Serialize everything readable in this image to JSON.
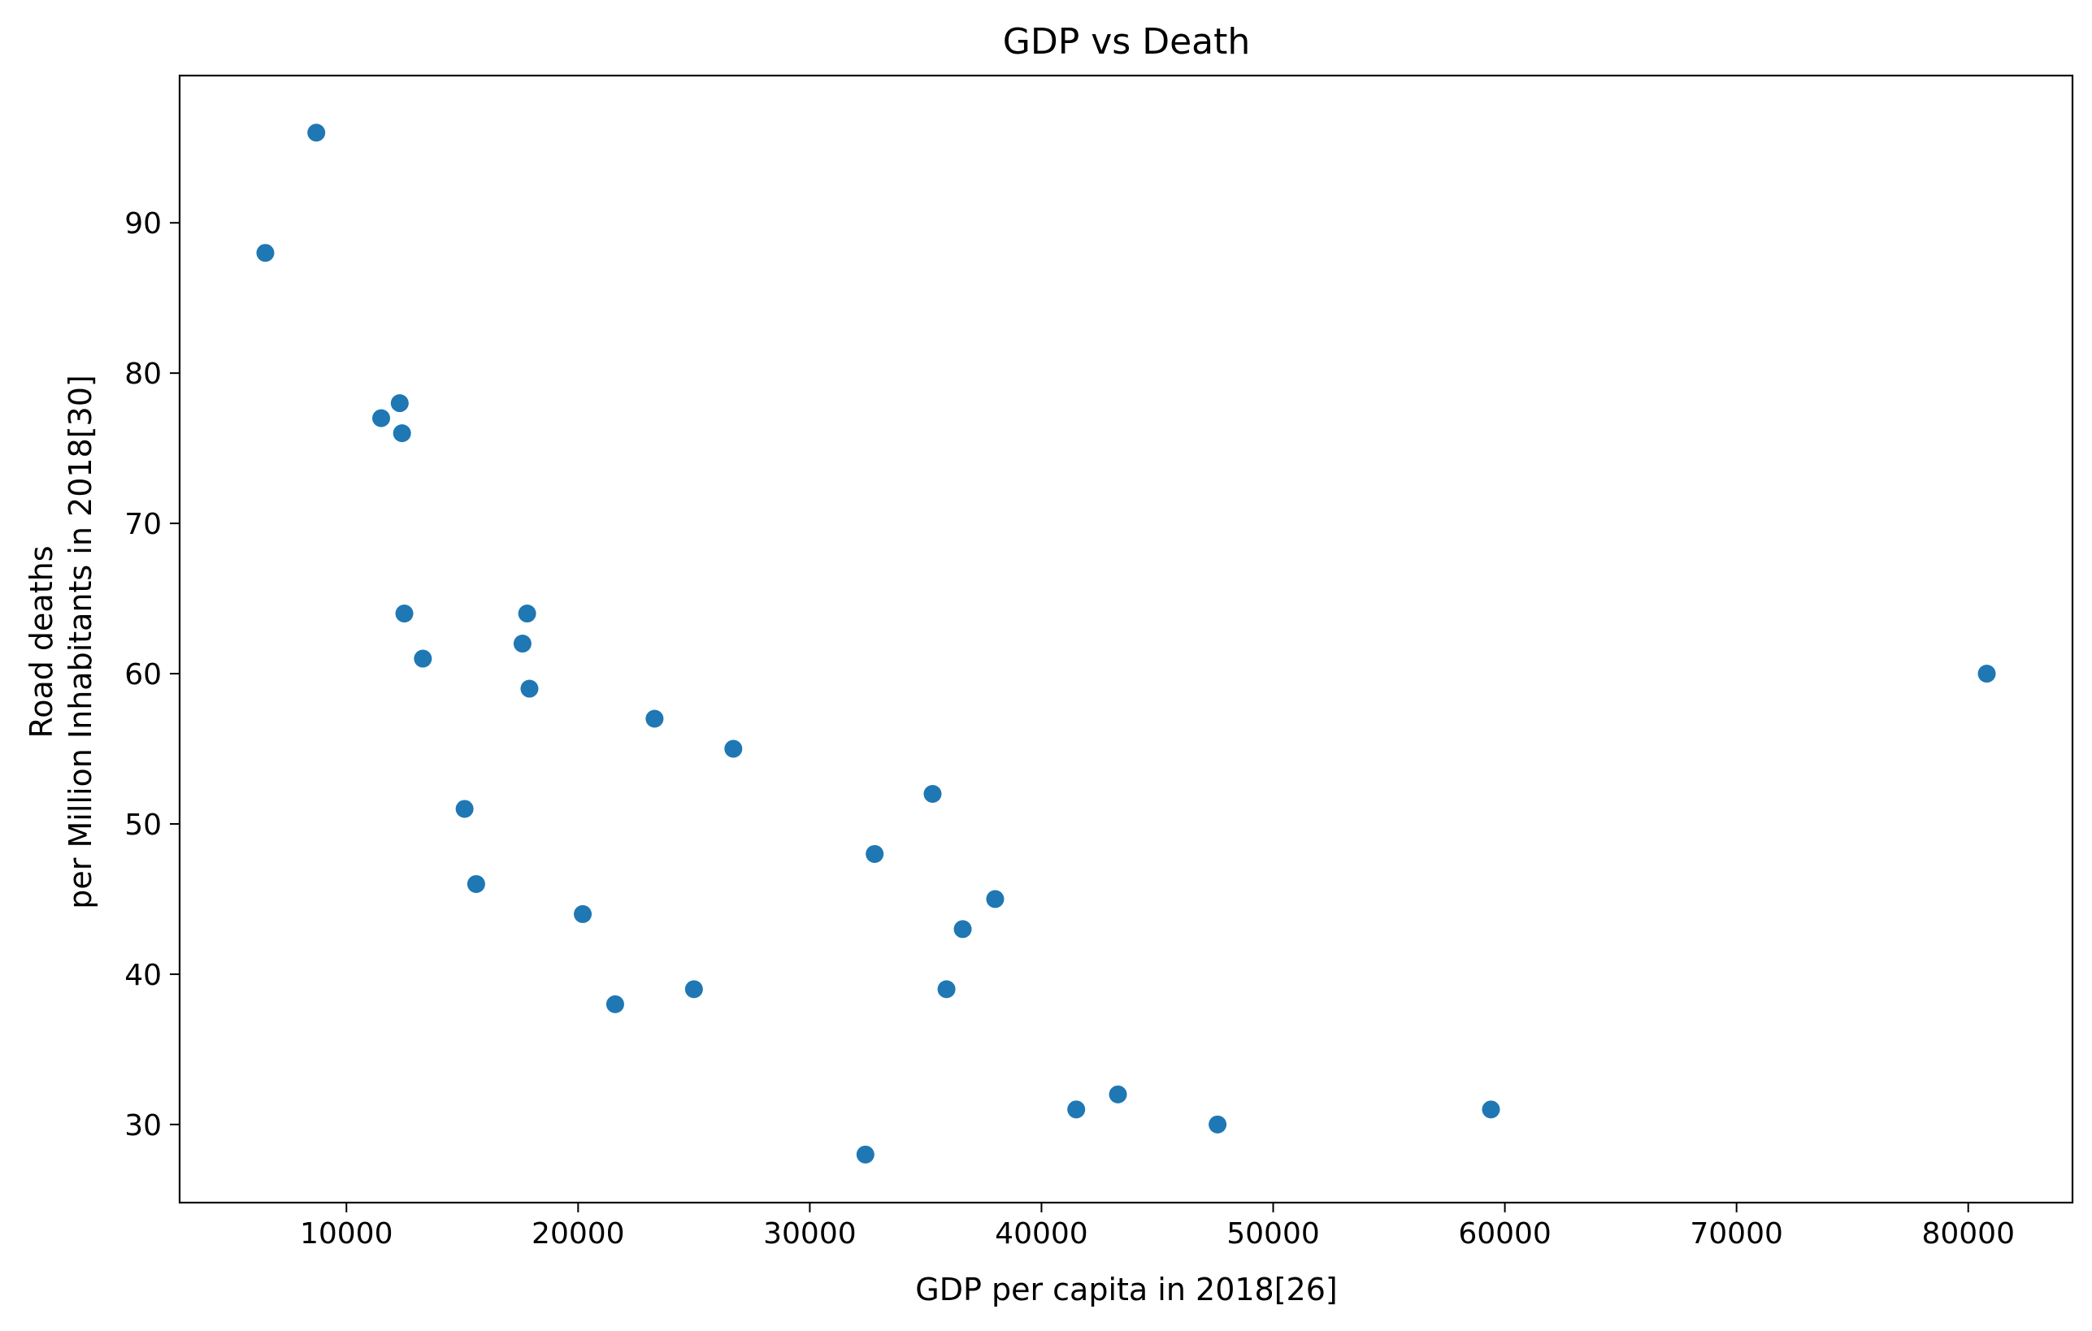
{
  "chart_data": {
    "type": "scatter",
    "title": "GDP vs Death",
    "xlabel": "GDP per capita in 2018[26]",
    "ylabel_lines": [
      "Road deaths",
      "per Million Inhabitants in 2018[30]"
    ],
    "xlim": [
      2800,
      84500
    ],
    "ylim": [
      24.8,
      99.8
    ],
    "xticks": [
      10000,
      20000,
      30000,
      40000,
      50000,
      60000,
      70000,
      80000
    ],
    "yticks": [
      30,
      40,
      50,
      60,
      70,
      80,
      90
    ],
    "grid": false,
    "marker_color": "#1f77b4",
    "points": [
      {
        "x": 6500,
        "y": 88
      },
      {
        "x": 8700,
        "y": 96
      },
      {
        "x": 11500,
        "y": 77
      },
      {
        "x": 12300,
        "y": 78
      },
      {
        "x": 12400,
        "y": 76
      },
      {
        "x": 12500,
        "y": 64
      },
      {
        "x": 13300,
        "y": 61
      },
      {
        "x": 15100,
        "y": 51
      },
      {
        "x": 15600,
        "y": 46
      },
      {
        "x": 17600,
        "y": 62
      },
      {
        "x": 17800,
        "y": 64
      },
      {
        "x": 17900,
        "y": 59
      },
      {
        "x": 20200,
        "y": 44
      },
      {
        "x": 21600,
        "y": 38
      },
      {
        "x": 23300,
        "y": 57
      },
      {
        "x": 25000,
        "y": 39
      },
      {
        "x": 26700,
        "y": 55
      },
      {
        "x": 32400,
        "y": 28
      },
      {
        "x": 32800,
        "y": 48
      },
      {
        "x": 35300,
        "y": 52
      },
      {
        "x": 35900,
        "y": 39
      },
      {
        "x": 36600,
        "y": 43
      },
      {
        "x": 38000,
        "y": 45
      },
      {
        "x": 41500,
        "y": 31
      },
      {
        "x": 43300,
        "y": 32
      },
      {
        "x": 47600,
        "y": 30
      },
      {
        "x": 59400,
        "y": 31
      },
      {
        "x": 80800,
        "y": 60
      }
    ]
  }
}
